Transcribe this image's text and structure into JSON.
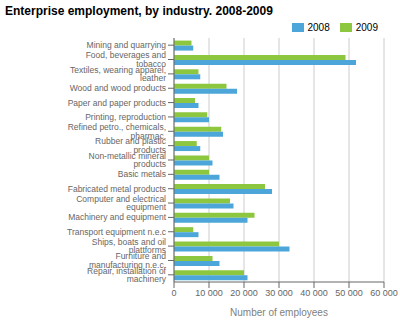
{
  "chart_data": {
    "type": "bar",
    "orientation": "horizontal",
    "title": "Enterprise employment, by industry. 2008-2009",
    "categories": [
      "Mining and quarrying",
      "Food, beverages and tobacco",
      "Textiles, wearing apparel, leather",
      "Wood and wood products",
      "Paper and paper products",
      "Printing, reproduction",
      "Refined petro., chemicals, pharmac.",
      "Rubber and plastic products",
      "Non-metallic mineral products",
      "Basic metals",
      "Fabricated metal products",
      "Computer and electrical equipment",
      "Machinery and equipment",
      "Transport equipment n.e.c",
      "Ships, boats and oil plattforms",
      "Furniture and manufacturing n.e.c.",
      "Repair, installation of machinery"
    ],
    "series": [
      {
        "name": "2008",
        "color": "#4da6d9",
        "values": [
          5500,
          52000,
          7500,
          18000,
          7000,
          10000,
          14000,
          7500,
          11000,
          13000,
          28000,
          17000,
          21000,
          7000,
          33000,
          13000,
          21000
        ]
      },
      {
        "name": "2009",
        "color": "#8dc63f",
        "values": [
          5000,
          49000,
          7000,
          15000,
          6000,
          9500,
          13500,
          6500,
          10000,
          10000,
          26000,
          16000,
          23000,
          5500,
          30000,
          11000,
          20000
        ]
      }
    ],
    "xlabel": "Number of employees",
    "xlim": [
      0,
      60000
    ],
    "xticks": [
      0,
      {
        "value": 10000,
        "label": "10 000"
      },
      {
        "value": 20000,
        "label": "20 000"
      },
      {
        "value": 30000,
        "label": "30 000"
      },
      {
        "value": 40000,
        "label": "40 000"
      },
      {
        "value": 50000,
        "label": "50 000"
      },
      {
        "value": 60000,
        "label": "60 000"
      }
    ],
    "grid": true,
    "legend": "upper right"
  }
}
